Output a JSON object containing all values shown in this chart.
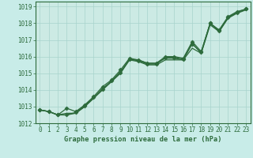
{
  "title": "Graphe pression niveau de la mer (hPa)",
  "background_color": "#c8ece8",
  "plot_bg_color": "#cceae4",
  "grid_color": "#a8d4cc",
  "line_color": "#2d6b3c",
  "marker_color": "#2d6b3c",
  "xlim": [
    -0.5,
    23.5
  ],
  "ylim": [
    1012,
    1019.3
  ],
  "xticks": [
    0,
    1,
    2,
    3,
    4,
    5,
    6,
    7,
    8,
    9,
    10,
    11,
    12,
    13,
    14,
    15,
    16,
    17,
    18,
    19,
    20,
    21,
    22,
    23
  ],
  "yticks": [
    1012,
    1013,
    1014,
    1015,
    1016,
    1017,
    1018,
    1019
  ],
  "series": [
    {
      "y": [
        1012.8,
        1012.7,
        1012.5,
        1012.9,
        1012.7,
        1013.1,
        1013.6,
        1014.2,
        1014.6,
        1015.2,
        1015.9,
        1015.8,
        1015.6,
        1015.6,
        1016.0,
        1016.0,
        1015.9,
        1016.9,
        1016.3,
        1018.0,
        1017.6,
        1018.4,
        1018.7,
        1018.85
      ],
      "marker": true,
      "lw": 0.9
    },
    {
      "y": [
        1012.8,
        1012.7,
        1012.5,
        1012.6,
        1012.6,
        1013.0,
        1013.5,
        1014.0,
        1014.5,
        1015.0,
        1015.8,
        1015.7,
        1015.5,
        1015.5,
        1015.8,
        1015.8,
        1015.8,
        1016.5,
        1016.2,
        1017.9,
        1017.5,
        1018.3,
        1018.6,
        1018.8
      ],
      "marker": false,
      "lw": 0.9
    },
    {
      "y": [
        1012.8,
        1012.7,
        1012.5,
        1012.5,
        1012.6,
        1013.0,
        1013.5,
        1014.1,
        1014.5,
        1015.1,
        1015.8,
        1015.8,
        1015.6,
        1015.6,
        1015.9,
        1015.9,
        1015.8,
        1016.8,
        1016.2,
        1018.0,
        1017.5,
        1018.35,
        1018.65,
        1018.85
      ],
      "marker": false,
      "lw": 0.9
    },
    {
      "y": [
        1012.8,
        1012.7,
        1012.5,
        1012.5,
        1012.65,
        1013.05,
        1013.55,
        1014.05,
        1014.55,
        1015.05,
        1015.85,
        1015.75,
        1015.55,
        1015.55,
        1015.95,
        1015.95,
        1015.85,
        1016.75,
        1016.25,
        1018.0,
        1017.55,
        1018.35,
        1018.65,
        1018.85
      ],
      "marker": true,
      "lw": 0.9
    }
  ],
  "marker_style": "D",
  "marker_size": 2.5,
  "tick_fontsize": 5.5,
  "xlabel_fontsize": 6.2
}
